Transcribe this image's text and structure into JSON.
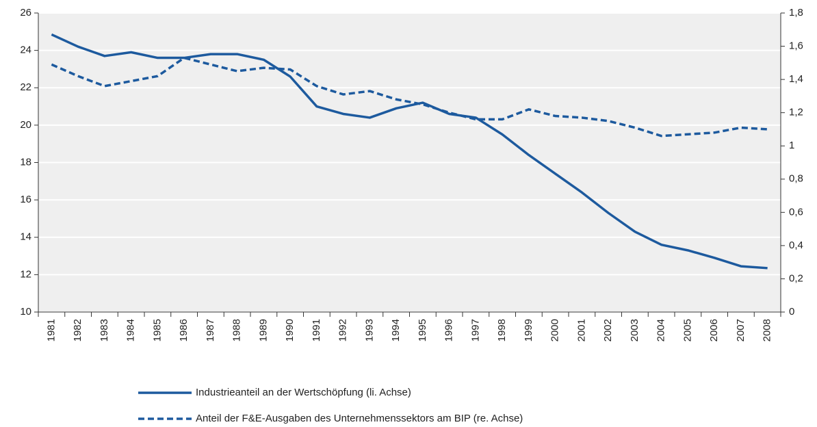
{
  "chart_data": {
    "type": "line",
    "categories": [
      "1981",
      "1982",
      "1983",
      "1984",
      "1985",
      "1986",
      "1987",
      "1988",
      "1989",
      "1990",
      "1991",
      "1992",
      "1993",
      "1994",
      "1995",
      "1996",
      "1997",
      "1998",
      "1999",
      "2000",
      "2001",
      "2002",
      "2003",
      "2004",
      "2005",
      "2006",
      "2007",
      "2008"
    ],
    "series": [
      {
        "name": "Industrieanteil an der Wertschöpfung (li. Achse)",
        "color": "#1d5a9e",
        "style": "solid",
        "values": [
          24.85,
          24.2,
          23.7,
          23.9,
          23.6,
          23.6,
          23.8,
          23.8,
          23.5,
          22.6,
          21.0,
          20.6,
          20.4,
          20.9,
          21.2,
          20.6,
          20.4,
          19.5,
          18.4,
          17.4,
          16.4,
          15.3,
          14.3,
          13.6,
          13.3,
          12.9,
          12.45,
          12.35
        ]
      },
      {
        "name": "Anteil der F&E-Ausgaben des Unternehmenssektors am BIP (re. Achse)",
        "color": "#1d5a9e",
        "style": "dashed",
        "axis": "y2",
        "values": [
          1.49,
          1.42,
          1.36,
          1.39,
          1.42,
          1.53,
          1.49,
          1.45,
          1.47,
          1.46,
          1.36,
          1.31,
          1.33,
          1.28,
          1.25,
          1.2,
          1.16,
          1.16,
          1.22,
          1.18,
          1.17,
          1.15,
          1.11,
          1.06,
          1.07,
          1.08,
          1.11,
          1.1
        ]
      }
    ],
    "ylim": [
      10,
      26
    ],
    "yticks": [
      10,
      12,
      14,
      16,
      18,
      20,
      22,
      24,
      26
    ],
    "y2lim": [
      0,
      1.8
    ],
    "y2ticks": [
      0,
      {
        "value": 0.2,
        "label": "0,2"
      },
      {
        "value": 0.4,
        "label": "0,4"
      },
      {
        "value": 0.6,
        "label": "0,6"
      },
      {
        "value": 0.8,
        "label": "0,8"
      },
      1,
      {
        "value": 1.2,
        "label": "1,2"
      },
      {
        "value": 1.4,
        "label": "1,4"
      },
      {
        "value": 1.6,
        "label": "1,6"
      },
      {
        "value": 1.8,
        "label": "1,8"
      }
    ],
    "grid": true
  }
}
